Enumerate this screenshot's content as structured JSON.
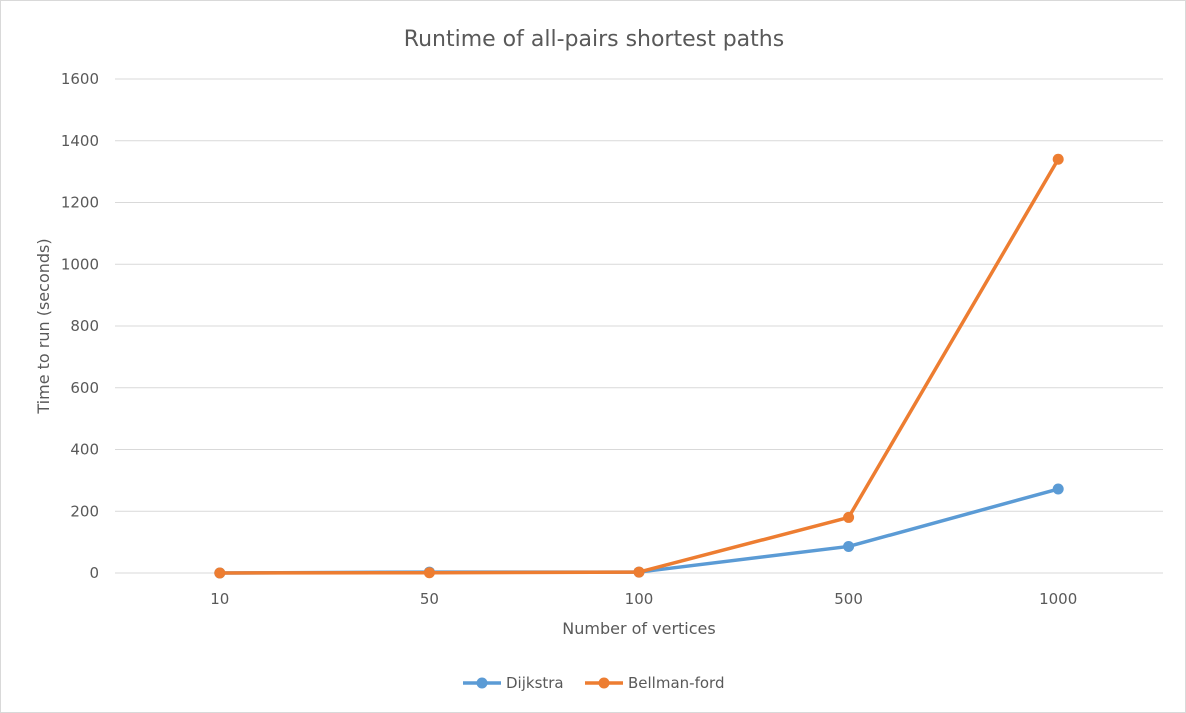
{
  "chart_data": {
    "type": "line",
    "title": "Runtime of all-pairs shortest paths",
    "xlabel": "Number of vertices",
    "ylabel": "Time to run (seconds)",
    "categories": [
      "10",
      "50",
      "100",
      "500",
      "1000"
    ],
    "ylim": [
      0,
      1600
    ],
    "yticks": [
      0,
      200,
      400,
      600,
      800,
      1000,
      1200,
      1400,
      1600
    ],
    "grid": true,
    "legend_position": "bottom",
    "series": [
      {
        "name": "Dijkstra",
        "color": "#5b9bd5",
        "values": [
          0.1,
          3,
          3,
          86,
          272
        ]
      },
      {
        "name": "Bellman-ford",
        "color": "#ed7d31",
        "values": [
          0.1,
          1,
          3,
          180,
          1340
        ]
      }
    ]
  }
}
